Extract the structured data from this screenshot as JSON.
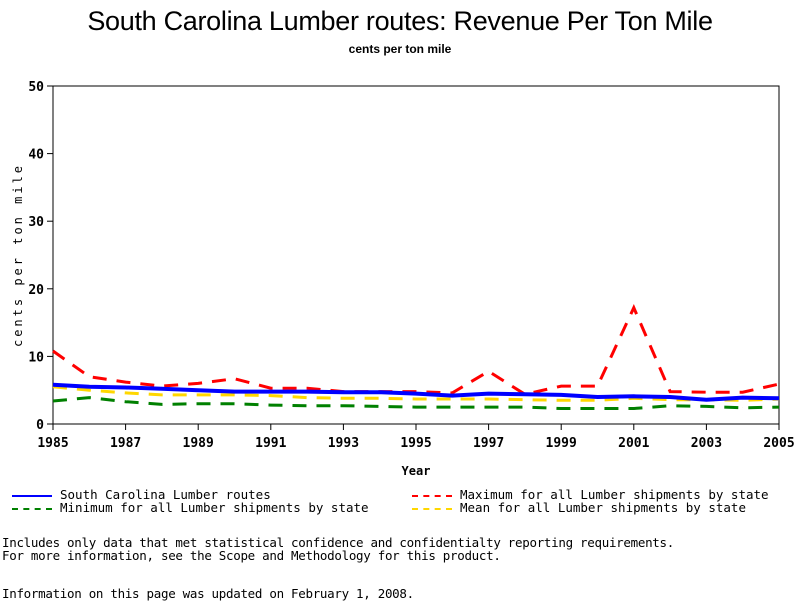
{
  "chart_data": {
    "type": "line",
    "title": "South Carolina Lumber routes: Revenue Per Ton Mile",
    "subtitle": "cents per ton mile",
    "xlabel": "Year",
    "ylabel": "cents per ton mile",
    "xlim": [
      1985,
      2005
    ],
    "ylim": [
      0,
      50
    ],
    "x_ticks": [
      "1985",
      "1987",
      "1989",
      "1991",
      "1993",
      "1995",
      "1997",
      "1999",
      "2001",
      "2003",
      "2005"
    ],
    "y_ticks": [
      "0",
      "10",
      "20",
      "30",
      "40",
      "50"
    ],
    "x": [
      1985,
      1986,
      1987,
      1988,
      1989,
      1990,
      1991,
      1992,
      1993,
      1994,
      1995,
      1996,
      1997,
      1998,
      1999,
      2000,
      2001,
      2002,
      2003,
      2004,
      2005
    ],
    "series": [
      {
        "name": "South Carolina Lumber routes",
        "color": "#0000ff",
        "style": "solid",
        "values": [
          5.8,
          5.5,
          5.4,
          5.2,
          5.0,
          4.8,
          4.8,
          4.8,
          4.7,
          4.7,
          4.5,
          4.2,
          4.5,
          4.4,
          4.3,
          4.0,
          4.1,
          4.0,
          3.6,
          3.9,
          3.8
        ]
      },
      {
        "name": "Maximum for all Lumber shipments by state",
        "color": "#ff0000",
        "style": "dashed",
        "values": [
          10.8,
          7.0,
          6.2,
          5.6,
          6.0,
          6.7,
          5.3,
          5.3,
          4.8,
          4.8,
          4.8,
          4.6,
          7.8,
          4.4,
          5.6,
          5.6,
          17.2,
          4.8,
          4.7,
          4.7,
          5.9
        ]
      },
      {
        "name": "Minimum for all Lumber shipments by state",
        "color": "#008000",
        "style": "dashed",
        "values": [
          3.4,
          3.9,
          3.3,
          2.9,
          3.0,
          3.0,
          2.8,
          2.7,
          2.7,
          2.6,
          2.5,
          2.5,
          2.5,
          2.5,
          2.3,
          2.3,
          2.3,
          2.7,
          2.6,
          2.4,
          2.5
        ]
      },
      {
        "name": "Mean for all Lumber shipments by state",
        "color": "#ffd700",
        "style": "dashed",
        "values": [
          5.5,
          5.0,
          4.6,
          4.3,
          4.3,
          4.3,
          4.2,
          3.9,
          3.8,
          3.8,
          3.7,
          3.7,
          3.7,
          3.6,
          3.5,
          3.5,
          3.8,
          3.6,
          3.6,
          3.5,
          3.7
        ]
      }
    ],
    "grid": false,
    "legend_position": "bottom"
  },
  "notes": {
    "line1": "Includes only data that met statistical confidence and confidentialty reporting requirements.",
    "line2": "For more information, see the Scope and Methodology for this product.",
    "updated": "Information on this page was updated on February 1, 2008."
  }
}
